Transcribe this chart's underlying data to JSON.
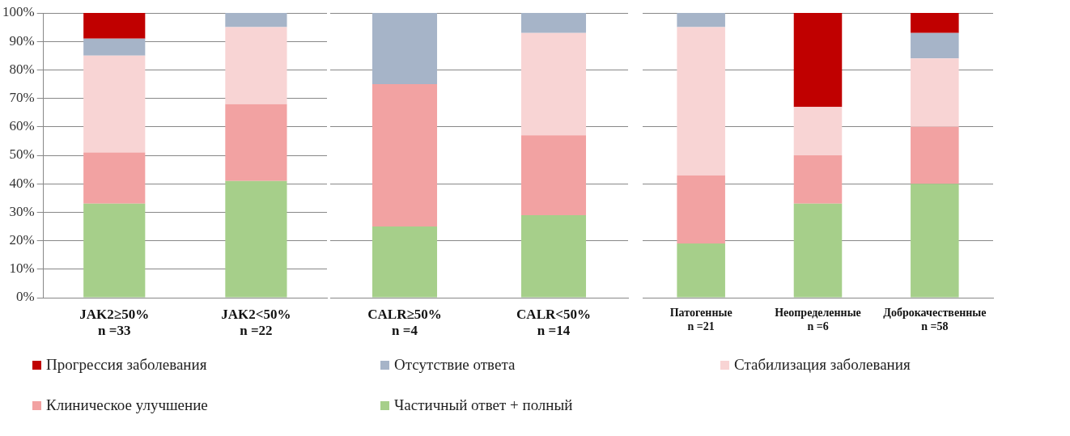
{
  "chart_data": [
    {
      "type": "bar",
      "stacked": true,
      "categories": [
        "JAK2≥50%\nn =33",
        "JAK2<50%\nn =22"
      ],
      "ylim": [
        0,
        100
      ],
      "yticks": [
        {
          "value": 0,
          "label": "0%"
        },
        {
          "value": 10,
          "label": "10%"
        },
        {
          "value": 20,
          "label": "20%"
        },
        {
          "value": 30,
          "label": "30%"
        },
        {
          "value": 40,
          "label": "40%"
        },
        {
          "value": 50,
          "label": "50%"
        },
        {
          "value": 60,
          "label": "60%"
        },
        {
          "value": 70,
          "label": "70%"
        },
        {
          "value": 80,
          "label": "80%"
        },
        {
          "value": 90,
          "label": "90%"
        },
        {
          "value": 100,
          "label": "100%"
        }
      ],
      "grid": "y",
      "legend": "bottom",
      "series": [
        {
          "name": "Частичный ответ + полный",
          "color": "#a6cf8a",
          "values": [
            33,
            41
          ]
        },
        {
          "name": "Клиническое улучшение",
          "color": "#f2a2a2",
          "values": [
            18,
            27
          ]
        },
        {
          "name": "Стабилизация заболевания",
          "color": "#f8d4d4",
          "values": [
            34,
            27
          ]
        },
        {
          "name": "Отсутствие ответа",
          "color": "#a6b4c8",
          "values": [
            6,
            5
          ]
        },
        {
          "name": "Прогрессия заболевания",
          "color": "#c00000",
          "values": [
            9,
            0
          ]
        }
      ]
    },
    {
      "type": "bar",
      "stacked": true,
      "categories": [
        "CALR≥50%\nn =4",
        "CALR<50%\nn =14"
      ],
      "ylim": [
        0,
        100
      ],
      "yticks": [
        0,
        20,
        40,
        60,
        80,
        100
      ],
      "grid": "y",
      "tick_labels": "x",
      "series": [
        {
          "color": "#a6cf8a",
          "values": [
            25,
            29
          ]
        },
        {
          "color": "#f2a2a2",
          "values": [
            50,
            28
          ]
        },
        {
          "color": "#f8d4d4",
          "values": [
            0,
            36
          ]
        },
        {
          "color": "#a6b4c8",
          "values": [
            25,
            7
          ]
        },
        {
          "color": "#c00000",
          "values": [
            0,
            0
          ]
        }
      ]
    },
    {
      "type": "bar",
      "stacked": true,
      "categories": [
        "Патогенные\nn =21",
        "Неопределенные\nn =6",
        "Доброкачественные\nn =58"
      ],
      "ylim": [
        0,
        100
      ],
      "yticks": [
        0,
        20,
        40,
        60,
        80,
        100
      ],
      "grid": "y",
      "tick_labels": "x",
      "series": [
        {
          "color": "#a6cf8a",
          "values": [
            19,
            33,
            40
          ]
        },
        {
          "color": "#f2a2a2",
          "values": [
            24,
            17,
            20
          ]
        },
        {
          "color": "#f8d4d4",
          "values": [
            52,
            17,
            24
          ]
        },
        {
          "color": "#a6b4c8",
          "values": [
            5,
            0,
            9
          ]
        },
        {
          "color": "#c00000",
          "values": [
            0,
            33,
            7
          ]
        }
      ]
    }
  ]
}
